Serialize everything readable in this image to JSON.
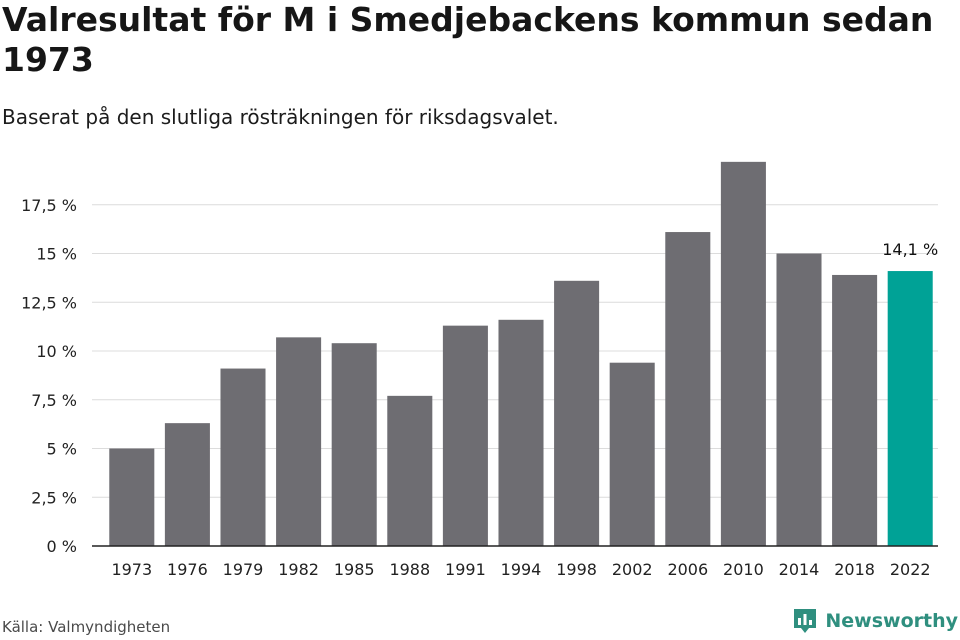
{
  "title": "Valresultat för M i Smedjebackens kommun sedan 1973",
  "subtitle": "Baserat på den slutliga rösträkningen för riksdagsvalet.",
  "source": "Källa: Valmyndigheten",
  "brand": {
    "name": "Newsworthy",
    "icon": "newsworthy-logo-icon"
  },
  "colors": {
    "bar": "#6e6d72",
    "highlight": "#00a296",
    "grid": "#dcdcdc",
    "axis": "#222222"
  },
  "chart_data": {
    "type": "bar",
    "categories": [
      "1973",
      "1976",
      "1979",
      "1982",
      "1985",
      "1988",
      "1991",
      "1994",
      "1998",
      "2002",
      "2006",
      "2010",
      "2014",
      "2018",
      "2022"
    ],
    "values": [
      5.0,
      6.3,
      9.1,
      10.7,
      10.4,
      7.7,
      11.3,
      11.6,
      13.6,
      9.4,
      16.1,
      19.7,
      15.0,
      13.9,
      14.1
    ],
    "highlight_index": 14,
    "data_labels": [
      {
        "index": 14,
        "text": "14,1 %"
      }
    ],
    "ylim": [
      0,
      20
    ],
    "yticks": [
      0,
      2.5,
      5,
      7.5,
      10,
      12.5,
      15,
      17.5
    ],
    "ytick_labels": [
      "0 %",
      "2,5 %",
      "5 %",
      "7,5 %",
      "10 %",
      "12,5 %",
      "15 %",
      "17,5 %"
    ],
    "xlabel": "",
    "ylabel": "",
    "grid": true
  }
}
